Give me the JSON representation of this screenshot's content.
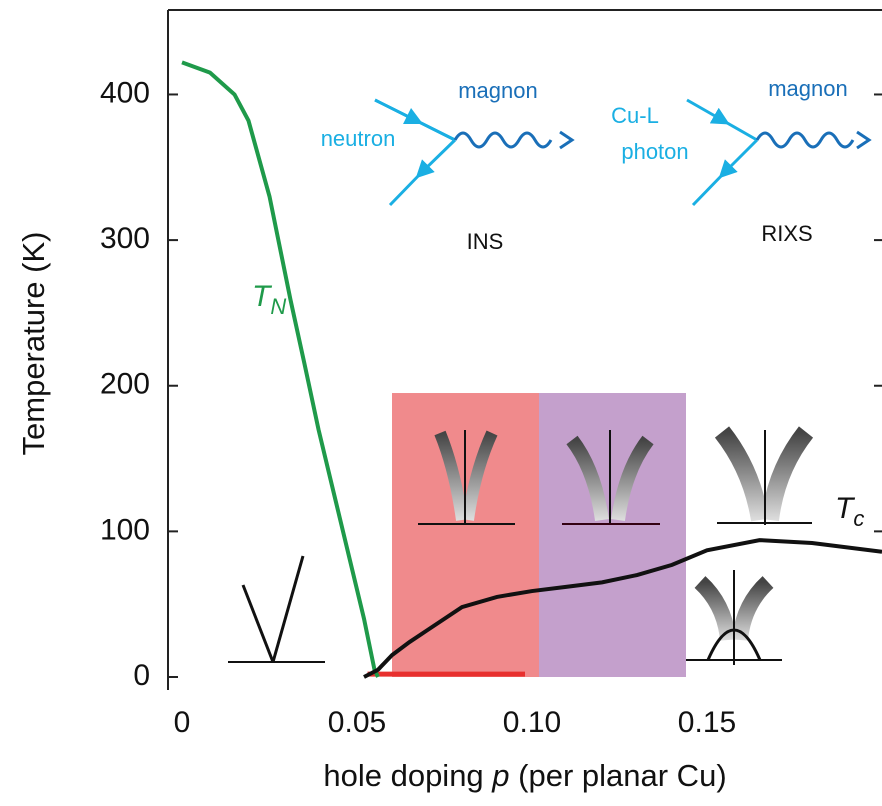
{
  "chart_data": {
    "type": "line",
    "xlabel": [
      "hole doping ",
      "p",
      " (per planar Cu)"
    ],
    "ylabel": "Temperature (K)",
    "xlim": [
      -0.004,
      0.2
    ],
    "ylim": [
      0,
      458
    ],
    "xticks": [
      0,
      0.05,
      {
        "value": 0.1,
        "label": "0.10"
      },
      0.15
    ],
    "yticks": [
      0,
      100,
      200,
      300,
      400
    ],
    "series": [
      {
        "label": {
          "text": "T",
          "sub": "N"
        },
        "color": "#1f9a4a",
        "x": [
          0,
          0.008,
          0.015,
          0.019,
          0.025,
          0.031,
          0.035,
          0.039,
          0.044,
          0.048,
          0.052,
          0.055,
          0.056
        ],
        "values": [
          422,
          415,
          400,
          382,
          330,
          259,
          215,
          170,
          120,
          80,
          40,
          5,
          0
        ]
      },
      {
        "label": {
          "text": "T",
          "sub": "c"
        },
        "color": "#111111",
        "x": [
          0.052,
          0.056,
          0.06,
          0.065,
          0.07,
          0.08,
          0.09,
          0.1,
          0.11,
          0.12,
          0.13,
          0.14,
          0.15,
          0.165,
          0.18,
          0.2
        ],
        "values": [
          0,
          5,
          15,
          24,
          32,
          48,
          55,
          59,
          62,
          65,
          70,
          77,
          87,
          94,
          92,
          86
        ]
      }
    ],
    "regions": [
      {
        "x": [
          0.06,
          0.102
        ],
        "y": [
          0,
          195
        ],
        "color": "#f08a8c"
      },
      {
        "x": [
          0.102,
          0.144
        ],
        "y": [
          0,
          195
        ],
        "color": "#c4a0cc"
      }
    ],
    "bar": {
      "x": [
        0.053,
        0.098
      ],
      "y": 2,
      "color": "#e8302e"
    },
    "annotations": {
      "magnon_ins": "magnon",
      "neutron": "neutron",
      "magnon_rixs": "magnon",
      "cu_l": "Cu-L",
      "photon": "photon",
      "ins": "INS",
      "rixs": "RIXS"
    }
  }
}
